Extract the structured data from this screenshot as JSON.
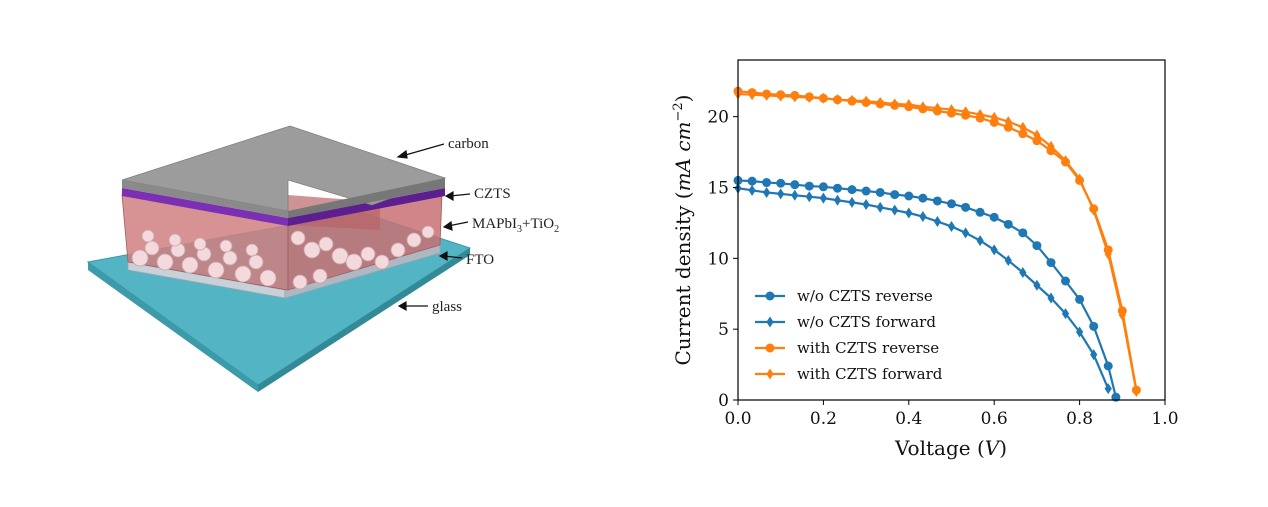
{
  "schematic": {
    "labels": {
      "carbon": "carbon",
      "czts": "CZTS",
      "mapbi_prefix": "MAPbI",
      "mapbi_sub": "3",
      "mapbi_mid": "+TiO",
      "mapbi_sub2": "2",
      "fto": "FTO",
      "glass": "glass"
    },
    "colors": {
      "carbon": "#9a9a9a",
      "czts": "#7b2fb3",
      "perovskite": "#c96a6a",
      "fto": "#b9c4cf",
      "glass": "#4fb0c0"
    }
  },
  "chart_data": {
    "type": "line",
    "xlabel": "Voltage (V)",
    "ylabel": "Current density (mA cm⁻²)",
    "xlim": [
      0.0,
      1.0
    ],
    "ylim": [
      0,
      24
    ],
    "xticks": [
      "0.0",
      "0.2",
      "0.4",
      "0.6",
      "0.8",
      "1.0"
    ],
    "yticks": [
      "0",
      "5",
      "10",
      "15",
      "20"
    ],
    "legend_position": "lower-left",
    "series": [
      {
        "name": "w/o CZTS reverse",
        "color": "#1f77b4",
        "marker": "circle",
        "x": [
          0.0,
          0.033,
          0.067,
          0.1,
          0.133,
          0.167,
          0.2,
          0.233,
          0.267,
          0.3,
          0.333,
          0.367,
          0.4,
          0.433,
          0.467,
          0.5,
          0.533,
          0.567,
          0.6,
          0.633,
          0.667,
          0.7,
          0.733,
          0.767,
          0.8,
          0.833,
          0.867,
          0.885
        ],
        "y": [
          15.5,
          15.45,
          15.35,
          15.3,
          15.2,
          15.1,
          15.05,
          14.95,
          14.85,
          14.75,
          14.65,
          14.5,
          14.4,
          14.25,
          14.05,
          13.85,
          13.6,
          13.25,
          12.9,
          12.4,
          11.8,
          10.9,
          9.7,
          8.4,
          7.1,
          5.2,
          2.4,
          0.2
        ]
      },
      {
        "name": "w/o CZTS forward",
        "color": "#1f77b4",
        "marker": "diamond",
        "x": [
          0.0,
          0.033,
          0.067,
          0.1,
          0.133,
          0.167,
          0.2,
          0.233,
          0.267,
          0.3,
          0.333,
          0.367,
          0.4,
          0.433,
          0.467,
          0.5,
          0.533,
          0.567,
          0.6,
          0.633,
          0.667,
          0.7,
          0.733,
          0.767,
          0.8,
          0.833,
          0.867
        ],
        "y": [
          14.95,
          14.8,
          14.65,
          14.55,
          14.45,
          14.35,
          14.25,
          14.1,
          13.95,
          13.8,
          13.6,
          13.4,
          13.2,
          12.95,
          12.6,
          12.25,
          11.8,
          11.25,
          10.6,
          9.85,
          9.0,
          8.1,
          7.2,
          6.1,
          4.8,
          3.2,
          0.8
        ]
      },
      {
        "name": "with CZTS reverse",
        "color": "#ff7f0e",
        "marker": "circle",
        "x": [
          0.0,
          0.033,
          0.067,
          0.1,
          0.133,
          0.167,
          0.2,
          0.233,
          0.267,
          0.3,
          0.333,
          0.367,
          0.4,
          0.433,
          0.467,
          0.5,
          0.533,
          0.567,
          0.6,
          0.633,
          0.667,
          0.7,
          0.733,
          0.767,
          0.8,
          0.833,
          0.867,
          0.9,
          0.933
        ],
        "y": [
          21.8,
          21.7,
          21.6,
          21.55,
          21.5,
          21.4,
          21.3,
          21.2,
          21.1,
          21.0,
          20.9,
          20.8,
          20.7,
          20.55,
          20.4,
          20.25,
          20.1,
          19.9,
          19.6,
          19.25,
          18.8,
          18.3,
          17.6,
          16.8,
          15.5,
          13.5,
          10.6,
          6.3,
          0.7
        ]
      },
      {
        "name": "with CZTS forward",
        "color": "#ff7f0e",
        "marker": "diamond",
        "x": [
          0.0,
          0.033,
          0.067,
          0.1,
          0.133,
          0.167,
          0.2,
          0.233,
          0.267,
          0.3,
          0.333,
          0.367,
          0.4,
          0.433,
          0.467,
          0.5,
          0.533,
          0.567,
          0.6,
          0.633,
          0.667,
          0.7,
          0.733,
          0.767,
          0.8,
          0.833,
          0.867,
          0.9,
          0.933
        ],
        "y": [
          21.6,
          21.55,
          21.5,
          21.45,
          21.4,
          21.35,
          21.3,
          21.2,
          21.15,
          21.1,
          21.0,
          20.9,
          20.85,
          20.7,
          20.6,
          20.5,
          20.35,
          20.15,
          19.95,
          19.65,
          19.25,
          18.7,
          17.9,
          16.9,
          15.6,
          13.4,
          10.3,
          6.0,
          0.6
        ]
      }
    ]
  }
}
